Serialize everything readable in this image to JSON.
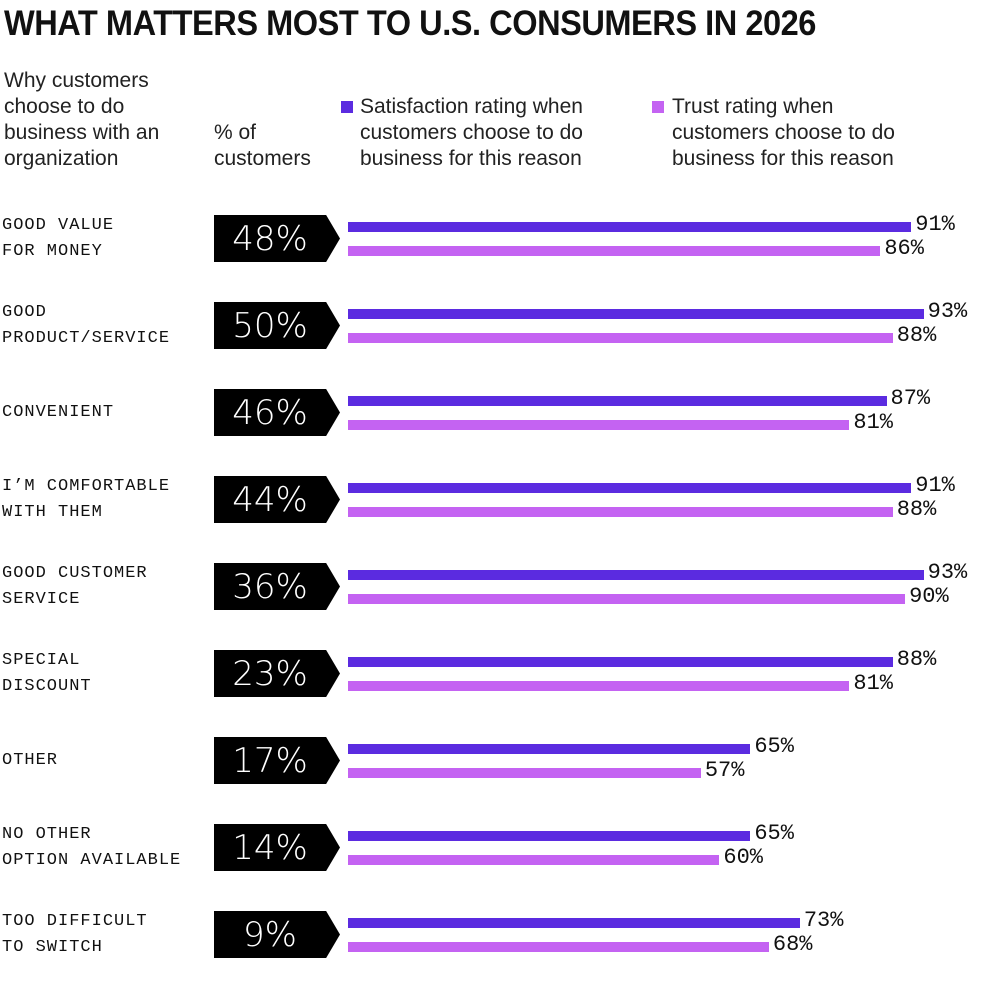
{
  "title": "WHAT MATTERS MOST TO U.S. CONSUMERS IN 2026",
  "headers": {
    "reason": "Why customers\nchoose to do\nbusiness with an\norganization",
    "pct": "% of\ncustomers"
  },
  "colors": {
    "satisfaction": "#5b2be0",
    "trust": "#c463f2",
    "badge": "#000000"
  },
  "chart_data": {
    "type": "bar",
    "orientation": "horizontal",
    "title": "WHAT MATTERS MOST TO U.S. CONSUMERS IN 2026",
    "legend_placement": "top",
    "categories": [
      "GOOD VALUE\nFOR MONEY",
      "GOOD\nPRODUCT/SERVICE",
      "CONVENIENT",
      "I’M COMFORTABLE\nWITH THEM",
      "GOOD CUSTOMER\nSERVICE",
      "SPECIAL\nDISCOUNT",
      "OTHER",
      "NO OTHER\nOPTION AVAILABLE",
      "TOO DIFFICULT\nTO SWITCH"
    ],
    "pct_customers": [
      "48%",
      "50%",
      "46%",
      "44%",
      "36%",
      "23%",
      "17%",
      "14%",
      "9%"
    ],
    "series": [
      {
        "name": "Satisfaction rating when\ncustomers choose to do\nbusiness for this reason",
        "values": [
          91,
          93,
          87,
          91,
          93,
          88,
          65,
          65,
          73
        ]
      },
      {
        "name": "Trust rating when\ncustomers choose to do\nbusiness for this reason",
        "values": [
          86,
          88,
          81,
          88,
          90,
          81,
          57,
          60,
          68
        ]
      }
    ]
  }
}
